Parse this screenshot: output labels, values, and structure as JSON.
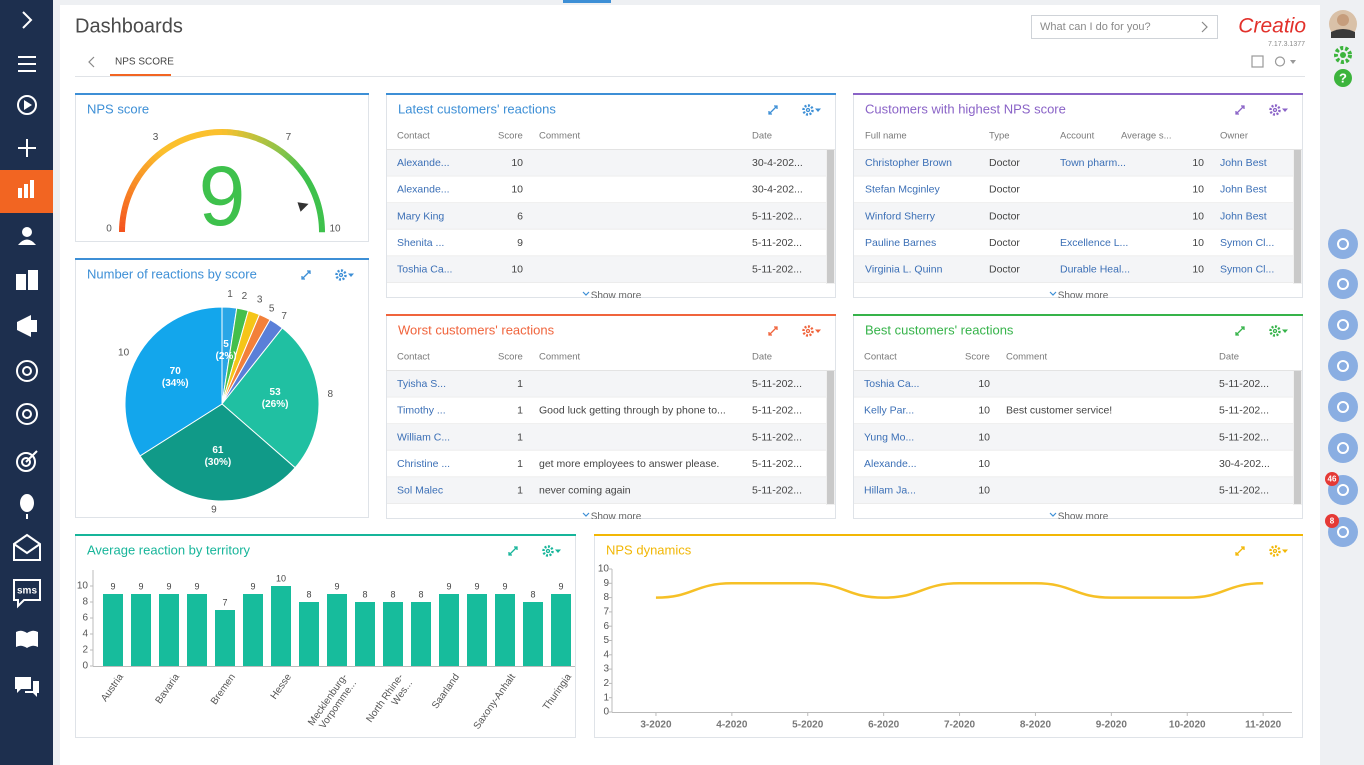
{
  "sidebar": {
    "sms_label": "sms"
  },
  "header": {
    "title": "Dashboards",
    "search_placeholder": "What can I do for you?",
    "logo": "Creatio",
    "version": "7.17.3.1377",
    "tab": "NPS SCORE"
  },
  "right_panel": {
    "help": "?",
    "badges": [
      46,
      8
    ]
  },
  "widgets": {
    "nps_score": {
      "title": "NPS score",
      "color": "#3d8fd6",
      "gauge": {
        "type": "gauge",
        "value": 9,
        "range": [
          0,
          10
        ],
        "ticks": [
          0,
          3,
          7,
          10
        ],
        "value_color": "#3ec14c"
      }
    },
    "reactions_by_score": {
      "title": "Number of reactions by score",
      "color": "#3d8fd6",
      "chart": {
        "type": "pie",
        "categories": [
          "1",
          "2",
          "3",
          "5",
          "7",
          "8",
          "9",
          "10"
        ],
        "values": [
          5,
          4,
          4,
          4,
          5,
          53,
          61,
          70
        ],
        "value_labels": [
          "5 (2%)",
          null,
          null,
          null,
          null,
          "53 (26%)",
          "61 (30%)",
          "70 (34%)"
        ],
        "colors": [
          "#2aa6e6",
          "#44bf4c",
          "#f5c518",
          "#f2803a",
          "#5a7fd8",
          "#20c0a2",
          "#109a88",
          "#13a6ec"
        ]
      }
    },
    "latest": {
      "title": "Latest customers' reactions",
      "color": "#3d8fd6",
      "show_more": "Show more",
      "columns": {
        "contact": "Contact",
        "score": "Score",
        "comment": "Comment",
        "date": "Date"
      },
      "rows": [
        {
          "contact": "Alexande...",
          "score": 10,
          "date": "30-4-202..."
        },
        {
          "contact": "Alexande...",
          "score": 10,
          "date": "30-4-202..."
        },
        {
          "contact": "Mary King",
          "score": 6,
          "date": "5-11-202..."
        },
        {
          "contact": "Shenita ...",
          "score": 9,
          "date": "5-11-202..."
        },
        {
          "contact": "Toshia Ca...",
          "score": 10,
          "date": "5-11-202..."
        }
      ]
    },
    "highest": {
      "title": "Customers with highest NPS score",
      "color": "#8a63c7",
      "show_more": "Show more",
      "columns": {
        "full_name": "Full name",
        "type": "Type",
        "account": "Account",
        "average": "Average s...",
        "owner": "Owner"
      },
      "rows": [
        {
          "full_name": "Christopher Brown",
          "type": "Doctor",
          "account": "Town pharm...",
          "average": 10,
          "owner": "John Best"
        },
        {
          "full_name": "Stefan Mcginley",
          "type": "Doctor",
          "average": 10,
          "owner": "John Best"
        },
        {
          "full_name": "Winford Sherry",
          "type": "Doctor",
          "average": 10,
          "owner": "John Best"
        },
        {
          "full_name": "Pauline Barnes",
          "type": "Doctor",
          "account": "Excellence L...",
          "average": 10,
          "owner": "Symon Cl..."
        },
        {
          "full_name": "Virginia L. Quinn",
          "type": "Doctor",
          "account": "Durable Heal...",
          "average": 10,
          "owner": "Symon Cl..."
        }
      ]
    },
    "worst": {
      "title": "Worst customers' reactions",
      "color": "#f0643c",
      "show_more": "Show more",
      "columns": {
        "contact": "Contact",
        "score": "Score",
        "comment": "Comment",
        "date": "Date"
      },
      "rows": [
        {
          "contact": "Tyisha S...",
          "score": 1,
          "date": "5-11-202..."
        },
        {
          "contact": "Timothy ...",
          "score": 1,
          "comment": "Good luck getting through by phone to...",
          "date": "5-11-202..."
        },
        {
          "contact": "William C...",
          "score": 1,
          "date": "5-11-202..."
        },
        {
          "contact": "Christine ...",
          "score": 1,
          "comment": "get more employees to answer please.",
          "date": "5-11-202..."
        },
        {
          "contact": "Sol Malec",
          "score": 1,
          "comment": "never coming again",
          "date": "5-11-202..."
        }
      ]
    },
    "best": {
      "title": "Best customers' reactions",
      "color": "#36b34a",
      "show_more": "Show more",
      "columns": {
        "contact": "Contact",
        "score": "Score",
        "comment": "Comment",
        "date": "Date"
      },
      "rows": [
        {
          "contact": "Toshia Ca...",
          "score": 10,
          "date": "5-11-202..."
        },
        {
          "contact": "Kelly Par...",
          "score": 10,
          "comment": "Best customer service!",
          "date": "5-11-202..."
        },
        {
          "contact": "Yung Mo...",
          "score": 10,
          "date": "5-11-202..."
        },
        {
          "contact": "Alexande...",
          "score": 10,
          "date": "30-4-202..."
        },
        {
          "contact": "Hillam Ja...",
          "score": 10,
          "date": "5-11-202..."
        }
      ]
    },
    "by_territory": {
      "title": "Average reaction by territory",
      "color": "#17b59a",
      "chart": {
        "type": "bar",
        "bar_color": "#17bc9c",
        "categories": [
          "Austria",
          null,
          "Bavaria",
          null,
          "Bremen",
          null,
          "Hesse",
          null,
          "Mecklenburg-Vorpomme...",
          null,
          "North Rhine-Wes...",
          null,
          "Saarland",
          null,
          "Saxony-Anhalt",
          null,
          "Thuringia"
        ],
        "values": [
          9,
          9,
          9,
          9,
          7,
          9,
          10,
          8,
          9,
          8,
          8,
          8,
          9,
          9,
          9,
          8,
          9
        ],
        "ylim": [
          0,
          12
        ],
        "yticks": [
          0,
          2,
          4,
          6,
          8,
          10
        ]
      }
    },
    "nps_dynamics": {
      "title": "NPS dynamics",
      "color": "#f2b705",
      "chart": {
        "type": "line",
        "line_color": "#f6c026",
        "categories": [
          "3-2020",
          "4-2020",
          "5-2020",
          "6-2020",
          "7-2020",
          "8-2020",
          "9-2020",
          "10-2020",
          "11-2020"
        ],
        "values": [
          8,
          9,
          9,
          8,
          9,
          9,
          8,
          8,
          9
        ],
        "ylim": [
          0,
          10
        ],
        "yticks": [
          0,
          1,
          2,
          3,
          4,
          5,
          6,
          7,
          8,
          9,
          10
        ]
      }
    }
  }
}
